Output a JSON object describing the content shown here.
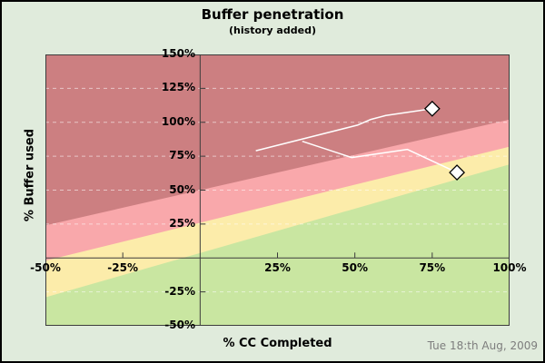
{
  "header": {
    "title": "Buffer penetration",
    "subtitle": "(history added)"
  },
  "footer": {
    "x_axis_title": "% CC Completed",
    "date_stamp": "Tue 18:th Aug, 2009"
  },
  "y_axis_title": "% Buffer used",
  "colors": {
    "background": "#e0ebdc",
    "frame_border": "#000000",
    "axis": "#3c3c3c",
    "grid": "#ffffff",
    "history_line": "#ffffff",
    "marker_fill": "#ffffff",
    "marker_stroke": "#000000",
    "title_text": "#000000",
    "date_text": "#7d7d7d"
  },
  "chart_data": {
    "type": "line",
    "title": "Buffer penetration",
    "subtitle": "(history added)",
    "xlabel": "% CC Completed",
    "ylabel": "% Buffer used",
    "xlim": [
      -50,
      100
    ],
    "ylim": [
      -50,
      150
    ],
    "grid": "horizontal-dashed-white",
    "legend": "none",
    "grid_y_values": [
      125,
      100,
      75,
      50,
      25,
      -25
    ],
    "x_ticks": [
      {
        "value": -50,
        "label": "-50%",
        "tick": false
      },
      {
        "value": -25,
        "label": "-25%",
        "tick": true
      },
      {
        "value": 25,
        "label": "25%",
        "tick": true
      },
      {
        "value": 50,
        "label": "50%",
        "tick": true
      },
      {
        "value": 75,
        "label": "75%",
        "tick": true
      },
      {
        "value": 100,
        "label": "100%",
        "tick": true
      }
    ],
    "y_ticks": [
      {
        "value": 150,
        "label": "150%",
        "tick": false
      },
      {
        "value": 125,
        "label": "125%",
        "tick": true
      },
      {
        "value": 100,
        "label": "100%",
        "tick": true
      },
      {
        "value": 75,
        "label": "75%",
        "tick": true
      },
      {
        "value": 50,
        "label": "50%",
        "tick": true
      },
      {
        "value": 25,
        "label": "25%",
        "tick": true
      },
      {
        "value": -25,
        "label": "-25%",
        "tick": true
      },
      {
        "value": -50,
        "label": "-50%",
        "tick": false
      }
    ],
    "zones": [
      {
        "name": "red",
        "color": "#cc7f81"
      },
      {
        "name": "pink",
        "color": "#f9a8ab",
        "boundary": {
          "x": [
            -50,
            100
          ],
          "y": [
            24,
            102
          ]
        }
      },
      {
        "name": "yellow",
        "color": "#fcecaa",
        "boundary": {
          "x": [
            -50,
            100
          ],
          "y": [
            -2,
            82
          ]
        }
      },
      {
        "name": "green",
        "color": "#c9e6a1",
        "boundary": {
          "x": [
            -50,
            100
          ],
          "y": [
            -29,
            69
          ]
        }
      }
    ],
    "series": [
      {
        "name": "history-upper",
        "points": [
          [
            18,
            79
          ],
          [
            51,
            98
          ],
          [
            55,
            102
          ],
          [
            60,
            105
          ],
          [
            66,
            107
          ],
          [
            75,
            110
          ]
        ],
        "end_marker": "diamond"
      },
      {
        "name": "history-lower",
        "points": [
          [
            33,
            86
          ],
          [
            49,
            74
          ],
          [
            67,
            80
          ],
          [
            83,
            63
          ]
        ],
        "end_marker": "diamond"
      }
    ]
  }
}
